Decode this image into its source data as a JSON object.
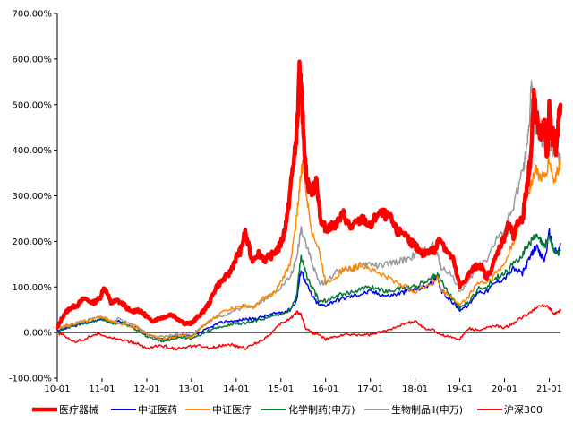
{
  "chart_data": {
    "type": "line",
    "title": "",
    "xlabel": "",
    "ylabel": "",
    "x_tick_labels": [
      "10-01",
      "11-01",
      "12-01",
      "13-01",
      "14-01",
      "15-01",
      "16-01",
      "17-01",
      "18-01",
      "19-01",
      "20-01",
      "21-01"
    ],
    "y_tick_labels": [
      "-100.00%",
      "0.00%",
      "100.00%",
      "200.00%",
      "300.00%",
      "400.00%",
      "500.00%",
      "600.00%",
      "700.00%"
    ],
    "ylim": [
      -100,
      700
    ],
    "xlim": [
      2010.0,
      2021.25
    ],
    "grid": false,
    "legend_position": "bottom",
    "series": [
      {
        "name": "医疗器械",
        "color": "#ff0000",
        "width": 4.5,
        "x": [
          2010.0,
          2010.15,
          2010.3,
          2010.45,
          2010.6,
          2010.8,
          2010.95,
          2011.05,
          2011.2,
          2011.35,
          2011.5,
          2011.65,
          2011.8,
          2011.95,
          2012.1,
          2012.25,
          2012.4,
          2012.55,
          2012.7,
          2012.85,
          2013.0,
          2013.1,
          2013.25,
          2013.4,
          2013.55,
          2013.7,
          2013.85,
          2014.0,
          2014.1,
          2014.2,
          2014.35,
          2014.5,
          2014.65,
          2014.8,
          2014.95,
          2015.05,
          2015.15,
          2015.25,
          2015.32,
          2015.38,
          2015.42,
          2015.46,
          2015.5,
          2015.55,
          2015.62,
          2015.7,
          2015.8,
          2015.9,
          2016.0,
          2016.1,
          2016.25,
          2016.4,
          2016.55,
          2016.7,
          2016.85,
          2017.0,
          2017.15,
          2017.3,
          2017.45,
          2017.6,
          2017.75,
          2017.9,
          2018.0,
          2018.15,
          2018.3,
          2018.45,
          2018.55,
          2018.7,
          2018.85,
          2019.0,
          2019.15,
          2019.3,
          2019.45,
          2019.6,
          2019.75,
          2019.9,
          2020.0,
          2020.1,
          2020.2,
          2020.3,
          2020.4,
          2020.5,
          2020.55,
          2020.6,
          2020.65,
          2020.7,
          2020.8,
          2020.9,
          2020.95,
          2021.0,
          2021.05,
          2021.1,
          2021.15,
          2021.2,
          2021.25
        ],
        "values": [
          10,
          40,
          55,
          60,
          75,
          65,
          75,
          100,
          65,
          70,
          60,
          45,
          50,
          40,
          25,
          30,
          35,
          40,
          30,
          20,
          20,
          30,
          45,
          65,
          100,
          115,
          130,
          165,
          180,
          220,
          160,
          175,
          160,
          170,
          185,
          210,
          260,
          350,
          400,
          480,
          590,
          520,
          450,
          360,
          320,
          310,
          330,
          240,
          230,
          230,
          240,
          260,
          230,
          240,
          250,
          230,
          260,
          260,
          250,
          220,
          220,
          200,
          190,
          170,
          180,
          180,
          210,
          180,
          160,
          100,
          120,
          140,
          150,
          120,
          150,
          190,
          210,
          240,
          210,
          240,
          250,
          320,
          360,
          400,
          520,
          480,
          430,
          460,
          380,
          500,
          420,
          440,
          400,
          460,
          500
        ]
      },
      {
        "name": "中证医药",
        "color": "#0000ee",
        "width": 1.5,
        "x": [
          2010.0,
          2010.2,
          2010.4,
          2010.6,
          2010.8,
          2011.0,
          2011.2,
          2011.4,
          2011.6,
          2011.8,
          2012.0,
          2012.2,
          2012.4,
          2012.6,
          2012.8,
          2013.0,
          2013.2,
          2013.4,
          2013.6,
          2013.8,
          2014.0,
          2014.2,
          2014.4,
          2014.6,
          2014.8,
          2015.0,
          2015.2,
          2015.35,
          2015.45,
          2015.55,
          2015.7,
          2015.85,
          2016.0,
          2016.2,
          2016.4,
          2016.6,
          2016.8,
          2017.0,
          2017.2,
          2017.4,
          2017.6,
          2017.8,
          2018.0,
          2018.2,
          2018.4,
          2018.5,
          2018.6,
          2018.8,
          2019.0,
          2019.2,
          2019.4,
          2019.6,
          2019.8,
          2020.0,
          2020.2,
          2020.4,
          2020.5,
          2020.6,
          2020.7,
          2020.8,
          2020.9,
          2021.0,
          2021.1,
          2021.2,
          2021.25
        ],
        "values": [
          5,
          10,
          15,
          20,
          25,
          30,
          20,
          25,
          15,
          10,
          -5,
          -10,
          -15,
          -10,
          -5,
          -10,
          0,
          10,
          20,
          25,
          25,
          30,
          30,
          35,
          40,
          45,
          50,
          70,
          140,
          110,
          80,
          60,
          60,
          70,
          75,
          80,
          85,
          90,
          85,
          80,
          85,
          90,
          95,
          100,
          110,
          120,
          90,
          70,
          50,
          60,
          90,
          90,
          110,
          120,
          140,
          130,
          150,
          170,
          190,
          170,
          160,
          220,
          180,
          175,
          195
        ]
      },
      {
        "name": "中证医疗",
        "color": "#ff8800",
        "width": 1.5,
        "x": [
          2010.0,
          2010.2,
          2010.4,
          2010.6,
          2010.8,
          2011.0,
          2011.2,
          2011.4,
          2011.6,
          2011.8,
          2012.0,
          2012.2,
          2012.4,
          2012.6,
          2012.8,
          2013.0,
          2013.2,
          2013.4,
          2013.6,
          2013.8,
          2014.0,
          2014.2,
          2014.4,
          2014.6,
          2014.8,
          2015.0,
          2015.2,
          2015.3,
          2015.4,
          2015.45,
          2015.5,
          2015.6,
          2015.7,
          2015.85,
          2016.0,
          2016.2,
          2016.4,
          2016.6,
          2016.8,
          2017.0,
          2017.2,
          2017.4,
          2017.6,
          2017.8,
          2018.0,
          2018.2,
          2018.4,
          2018.5,
          2018.6,
          2018.8,
          2019.0,
          2019.2,
          2019.4,
          2019.6,
          2019.8,
          2020.0,
          2020.2,
          2020.4,
          2020.5,
          2020.6,
          2020.7,
          2020.8,
          2020.9,
          2021.0,
          2021.1,
          2021.2,
          2021.25
        ],
        "values": [
          10,
          15,
          20,
          25,
          30,
          35,
          25,
          20,
          15,
          10,
          -5,
          -10,
          -15,
          -10,
          -5,
          -10,
          10,
          25,
          40,
          50,
          55,
          60,
          55,
          75,
          80,
          110,
          150,
          210,
          300,
          350,
          370,
          280,
          220,
          180,
          110,
          120,
          140,
          140,
          150,
          140,
          130,
          120,
          110,
          100,
          90,
          100,
          110,
          120,
          90,
          80,
          60,
          80,
          110,
          110,
          130,
          150,
          200,
          250,
          300,
          330,
          360,
          340,
          340,
          380,
          330,
          360,
          370
        ]
      },
      {
        "name": "化学制药(申万)",
        "color": "#007a33",
        "width": 1.5,
        "x": [
          2010.0,
          2010.2,
          2010.4,
          2010.6,
          2010.8,
          2011.0,
          2011.2,
          2011.4,
          2011.6,
          2011.8,
          2012.0,
          2012.2,
          2012.4,
          2012.6,
          2012.8,
          2013.0,
          2013.2,
          2013.4,
          2013.6,
          2013.8,
          2014.0,
          2014.2,
          2014.4,
          2014.6,
          2014.8,
          2015.0,
          2015.2,
          2015.35,
          2015.45,
          2015.55,
          2015.7,
          2015.85,
          2016.0,
          2016.2,
          2016.4,
          2016.6,
          2016.8,
          2017.0,
          2017.2,
          2017.4,
          2017.6,
          2017.8,
          2018.0,
          2018.2,
          2018.4,
          2018.5,
          2018.6,
          2018.8,
          2019.0,
          2019.2,
          2019.4,
          2019.6,
          2019.8,
          2020.0,
          2020.2,
          2020.4,
          2020.5,
          2020.6,
          2020.7,
          2020.8,
          2020.9,
          2021.0,
          2021.1,
          2021.2,
          2021.25
        ],
        "values": [
          0,
          10,
          15,
          20,
          25,
          30,
          20,
          20,
          15,
          5,
          -10,
          -15,
          -20,
          -15,
          -10,
          -15,
          -5,
          5,
          10,
          15,
          20,
          20,
          25,
          30,
          35,
          40,
          50,
          80,
          170,
          130,
          100,
          70,
          70,
          80,
          85,
          90,
          95,
          100,
          95,
          90,
          95,
          100,
          100,
          110,
          125,
          130,
          110,
          80,
          55,
          65,
          95,
          100,
          120,
          130,
          150,
          170,
          190,
          200,
          210,
          200,
          190,
          210,
          180,
          170,
          180
        ]
      },
      {
        "name": "生物制品Ⅱ(申万)",
        "color": "#999999",
        "width": 1.5,
        "x": [
          2010.0,
          2010.2,
          2010.4,
          2010.6,
          2010.8,
          2011.0,
          2011.2,
          2011.4,
          2011.6,
          2011.8,
          2012.0,
          2012.2,
          2012.4,
          2012.6,
          2012.8,
          2013.0,
          2013.2,
          2013.4,
          2013.6,
          2013.8,
          2014.0,
          2014.2,
          2014.4,
          2014.6,
          2014.8,
          2015.0,
          2015.2,
          2015.35,
          2015.45,
          2015.55,
          2015.7,
          2015.85,
          2016.0,
          2016.2,
          2016.4,
          2016.6,
          2016.8,
          2017.0,
          2017.2,
          2017.4,
          2017.6,
          2017.8,
          2018.0,
          2018.2,
          2018.4,
          2018.5,
          2018.6,
          2018.8,
          2019.0,
          2019.2,
          2019.4,
          2019.6,
          2019.8,
          2020.0,
          2020.2,
          2020.4,
          2020.5,
          2020.55,
          2020.6,
          2020.7,
          2020.8,
          2020.9,
          2021.0,
          2021.1,
          2021.2,
          2021.25
        ],
        "values": [
          10,
          15,
          20,
          25,
          30,
          35,
          25,
          30,
          20,
          15,
          -5,
          -10,
          -10,
          -5,
          0,
          -5,
          10,
          25,
          35,
          40,
          50,
          55,
          60,
          70,
          85,
          100,
          120,
          160,
          230,
          200,
          150,
          110,
          110,
          130,
          140,
          140,
          150,
          150,
          145,
          150,
          155,
          160,
          170,
          180,
          190,
          170,
          140,
          130,
          90,
          110,
          150,
          160,
          200,
          230,
          280,
          350,
          400,
          450,
          550,
          450,
          420,
          430,
          400,
          400,
          380,
          380
        ]
      },
      {
        "name": "沪深300",
        "color": "#ff0000",
        "width": 1.5,
        "x": [
          2010.0,
          2010.2,
          2010.4,
          2010.6,
          2010.8,
          2011.0,
          2011.2,
          2011.4,
          2011.6,
          2011.8,
          2012.0,
          2012.2,
          2012.4,
          2012.6,
          2012.8,
          2013.0,
          2013.2,
          2013.4,
          2013.6,
          2013.8,
          2014.0,
          2014.2,
          2014.4,
          2014.6,
          2014.8,
          2015.0,
          2015.2,
          2015.35,
          2015.45,
          2015.55,
          2015.7,
          2015.85,
          2016.0,
          2016.2,
          2016.4,
          2016.6,
          2016.8,
          2017.0,
          2017.2,
          2017.4,
          2017.6,
          2017.8,
          2018.0,
          2018.2,
          2018.4,
          2018.6,
          2018.8,
          2019.0,
          2019.2,
          2019.4,
          2019.6,
          2019.8,
          2020.0,
          2020.2,
          2020.4,
          2020.6,
          2020.8,
          2021.0,
          2021.1,
          2021.2,
          2021.25
        ],
        "values": [
          0,
          -10,
          -20,
          -15,
          -5,
          -5,
          -10,
          -15,
          -20,
          -25,
          -35,
          -30,
          -30,
          -35,
          -35,
          -30,
          -30,
          -35,
          -30,
          -25,
          -30,
          -35,
          -25,
          -15,
          0,
          20,
          30,
          45,
          40,
          10,
          0,
          -5,
          -15,
          -10,
          -5,
          -5,
          -5,
          -5,
          0,
          5,
          15,
          20,
          25,
          10,
          5,
          -5,
          -10,
          -15,
          10,
          5,
          10,
          15,
          10,
          20,
          35,
          45,
          60,
          55,
          40,
          45,
          50
        ]
      }
    ]
  },
  "legend": {
    "items": [
      {
        "label": "医疗器械",
        "color": "#ff0000",
        "width": 4.5
      },
      {
        "label": "中证医药",
        "color": "#0000ee",
        "width": 2
      },
      {
        "label": "中证医疗",
        "color": "#ff8800",
        "width": 2
      },
      {
        "label": "化学制药(申万)",
        "color": "#007a33",
        "width": 2
      },
      {
        "label": "生物制品Ⅱ(申万)",
        "color": "#999999",
        "width": 2
      },
      {
        "label": "沪深300",
        "color": "#ff0000",
        "width": 2
      }
    ]
  }
}
